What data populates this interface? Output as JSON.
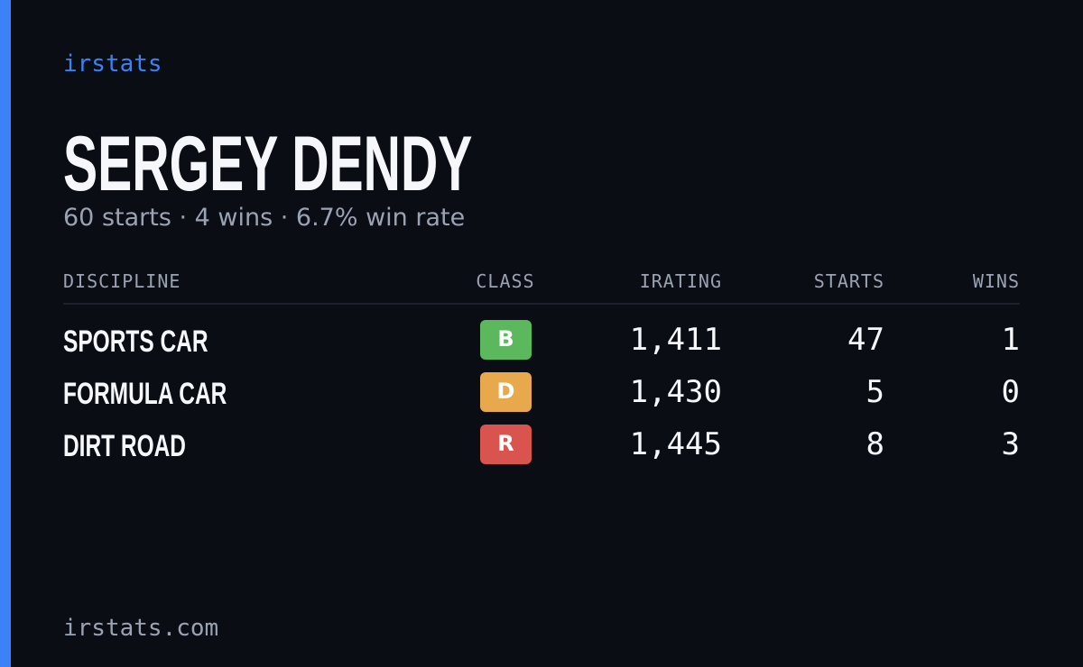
{
  "brand": "irstats",
  "header": {
    "title": "SERGEY DENDY",
    "subtitle": "60 starts · 4 wins · 6.7% win rate"
  },
  "table": {
    "columns": [
      "DISCIPLINE",
      "CLASS",
      "IRATING",
      "STARTS",
      "WINS"
    ],
    "rows": [
      [
        "SPORTS CAR",
        "B",
        "1,411",
        "47",
        "1"
      ],
      [
        "FORMULA CAR",
        "D",
        "1,430",
        "5",
        "0"
      ],
      [
        "DIRT ROAD",
        "R",
        "1,445",
        "8",
        "3"
      ]
    ],
    "class_colors": [
      "#5cb85c",
      "#e8a94c",
      "#d9534f"
    ]
  },
  "footer": {
    "url": "irstats.com"
  }
}
